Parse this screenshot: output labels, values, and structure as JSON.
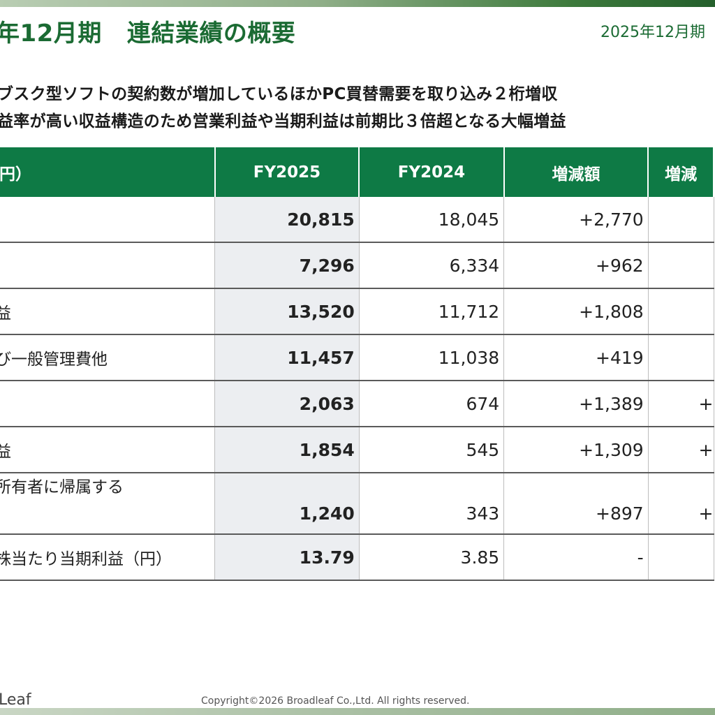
{
  "header": {
    "title_main": "年12月期",
    "title_sub": "連結業績の概要",
    "right_text": "2025年12月期"
  },
  "lead": {
    "line1": "ブスク型ソフトの契約数が増加しているほかPC買替需要を取り込み２桁増収",
    "line2": "益率が高い収益構造のため営業利益や当期利益は前期比３倍超となる大幅増益"
  },
  "table": {
    "headers": {
      "item": "円）",
      "fy2025": "FY2025",
      "fy2024": "FY2024",
      "change": "増減額",
      "pct": "増減"
    },
    "rows": [
      {
        "item": "",
        "fy2025": "20,815",
        "fy2024": "18,045",
        "change": "+2,770",
        "pct": ""
      },
      {
        "item": "",
        "fy2025": "7,296",
        "fy2024": "6,334",
        "change": "+962",
        "pct": ""
      },
      {
        "item": "益",
        "fy2025": "13,520",
        "fy2024": "11,712",
        "change": "+1,808",
        "pct": ""
      },
      {
        "item": "び一般管理費他",
        "fy2025": "11,457",
        "fy2024": "11,038",
        "change": "+419",
        "pct": ""
      },
      {
        "item": "",
        "fy2025": "2,063",
        "fy2024": "674",
        "change": "+1,389",
        "pct": "+"
      },
      {
        "item": "益",
        "fy2025": "1,854",
        "fy2024": "545",
        "change": "+1,309",
        "pct": "+"
      },
      {
        "item": "所有者に帰属する",
        "fy2025": "1,240",
        "fy2024": "343",
        "change": "+897",
        "pct": "+"
      },
      {
        "item": "株当たり当期利益（円）",
        "fy2025": "13.79",
        "fy2024": "3.85",
        "change": "-",
        "pct": ""
      }
    ]
  },
  "footer": {
    "logo": "Leaf",
    "copyright": "Copyright©2026 Broadleaf Co.,Ltd. All rights reserved."
  },
  "colors": {
    "brand_green": "#0e7a45",
    "title_green": "#1b6b33",
    "fy2025_bg": "#eceef1"
  }
}
